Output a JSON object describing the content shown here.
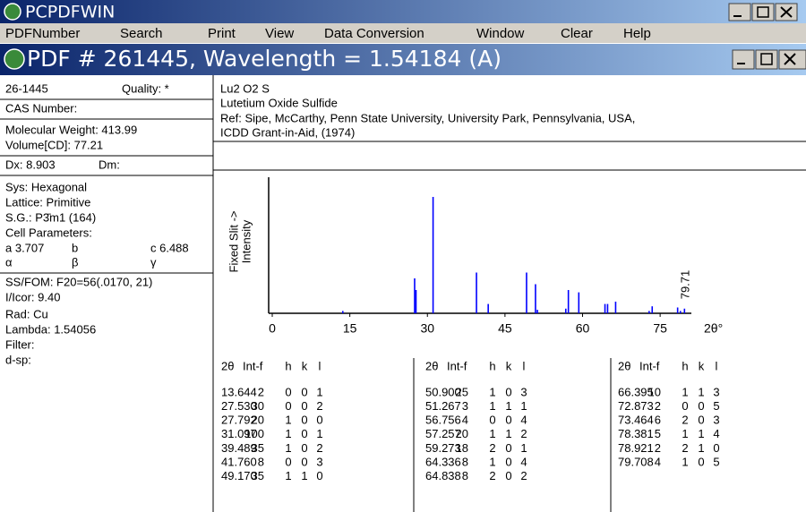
{
  "app_title": "PCPDFWIN",
  "menu": [
    "PDFNumber",
    "Search",
    "Print",
    "View",
    "Data Conversion",
    "Window",
    "Clear",
    "Help"
  ],
  "window_title": "PDF # 261445, Wavelength = 1.54184 (A)",
  "left_panel": [
    [
      "26-1445",
      "Quality: *"
    ],
    [
      "CAS Number:"
    ],
    [
      "Molecular Weight:  413.99"
    ],
    [
      "Volume[CD]:   77.21"
    ],
    [
      "Dx:  8.903",
      "Dm:"
    ],
    [
      "Sys: Hexagonal"
    ],
    [
      "Lattice: Primitive"
    ],
    [
      "S.G.: P3̄m1 (164)"
    ],
    [
      "Cell Parameters:"
    ],
    [
      "a  3.707",
      "b",
      "c  6.488"
    ],
    [
      "α",
      "β",
      "γ"
    ],
    [
      "SS/FOM: F20=56(.0170, 21)"
    ],
    [
      "I/Icor:  9.40"
    ],
    [
      "Rad: Cu"
    ],
    [
      "Lambda: 1.54056"
    ],
    [
      "Filter:"
    ],
    [
      "d-sp:"
    ]
  ],
  "header": [
    "Lu2 O2 S",
    "Lutetium Oxide Sulfide",
    "Ref: Sipe, McCarthy, Penn State University, University Park, Pennsylvania, USA,",
    "ICDD Grant-in-Aid, (1974)"
  ],
  "chart_data": {
    "type": "stick",
    "ylabel": [
      "Fixed  Slit  ->",
      "Intensity"
    ],
    "xlabel": "2θ°",
    "annotation": "79.71",
    "color": "#0000ff",
    "x": [
      13.644,
      27.53,
      27.792,
      31.097,
      39.489,
      41.76,
      49.17,
      50.9,
      51.267,
      56.756,
      57.257,
      59.273,
      64.336,
      64.838,
      66.395,
      72.873,
      73.464,
      78.381,
      78.921,
      79.708
    ],
    "values": [
      2,
      30,
      20,
      100,
      35,
      8,
      35,
      25,
      3,
      4,
      20,
      18,
      8,
      8,
      10,
      2,
      6,
      5,
      2,
      4
    ],
    "xlim": [
      0,
      80
    ],
    "xticks": [
      0,
      15,
      30,
      45,
      60,
      75
    ],
    "ylim": [
      0,
      100
    ]
  },
  "table": {
    "header": [
      "2θ",
      "Int-f",
      "h",
      "k",
      "l"
    ],
    "rows": [
      [
        "13.644",
        "2",
        "0",
        "0",
        "1"
      ],
      [
        "27.530",
        "30",
        "0",
        "0",
        "2"
      ],
      [
        "27.792",
        "20",
        "1",
        "0",
        "0"
      ],
      [
        "31.097",
        "100",
        "1",
        "0",
        "1"
      ],
      [
        "39.489",
        "35",
        "1",
        "0",
        "2"
      ],
      [
        "41.760",
        "8",
        "0",
        "0",
        "3"
      ],
      [
        "49.170",
        "35",
        "1",
        "1",
        "0"
      ],
      [
        "50.900",
        "25",
        "1",
        "0",
        "3"
      ],
      [
        "51.267",
        "3",
        "1",
        "1",
        "1"
      ],
      [
        "56.756",
        "4",
        "0",
        "0",
        "4"
      ],
      [
        "57.257",
        "20",
        "1",
        "1",
        "2"
      ],
      [
        "59.273",
        "18",
        "2",
        "0",
        "1"
      ],
      [
        "64.336",
        "8",
        "1",
        "0",
        "4"
      ],
      [
        "64.838",
        "8",
        "2",
        "0",
        "2"
      ],
      [
        "66.395",
        "10",
        "1",
        "1",
        "3"
      ],
      [
        "72.873",
        "2",
        "0",
        "0",
        "5"
      ],
      [
        "73.464",
        "6",
        "2",
        "0",
        "3"
      ],
      [
        "78.381",
        "5",
        "1",
        "1",
        "4"
      ],
      [
        "78.921",
        "2",
        "2",
        "1",
        "0"
      ],
      [
        "79.708",
        "4",
        "1",
        "0",
        "5"
      ]
    ]
  }
}
